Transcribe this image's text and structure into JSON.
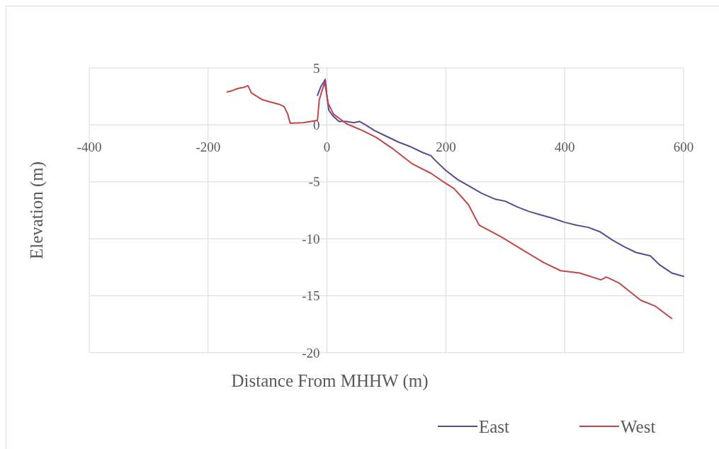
{
  "chart_data": {
    "type": "line",
    "xlabel": "Distance From MHHW (m)",
    "ylabel": "Elevation (m)",
    "xlim": [
      -400,
      600
    ],
    "xticks": [
      -400,
      -200,
      0,
      200,
      400,
      600
    ],
    "ylim": [
      -20,
      5
    ],
    "yticks": [
      -20,
      -15,
      -10,
      -5,
      0,
      5
    ],
    "grid": true,
    "legend": "bottom right",
    "series": [
      {
        "name": "East",
        "color": "#5b4a91",
        "x": [
          -16,
          -10,
          -5,
          -3,
          0,
          3,
          10,
          20,
          33,
          45,
          55,
          65,
          80,
          100,
          120,
          140,
          160,
          175,
          180,
          200,
          220,
          240,
          260,
          282,
          300,
          320,
          340,
          360,
          380,
          400,
          420,
          440,
          460,
          480,
          500,
          520,
          544,
          560,
          580,
          600
        ],
        "values": [
          2.6,
          3.4,
          3.8,
          4.0,
          2.5,
          1.3,
          0.8,
          0.3,
          0.3,
          0.2,
          0.3,
          0.0,
          -0.5,
          -1.0,
          -1.5,
          -1.9,
          -2.4,
          -2.7,
          -3.0,
          -4.0,
          -4.8,
          -5.4,
          -6.0,
          -6.5,
          -6.7,
          -7.2,
          -7.6,
          -7.9,
          -8.2,
          -8.55,
          -8.8,
          -9.0,
          -9.4,
          -10.1,
          -10.7,
          -11.2,
          -11.5,
          -12.3,
          -13.0,
          -13.3
        ]
      },
      {
        "name": "West",
        "color": "#c0464a",
        "x": [
          -168,
          -160,
          -150,
          -140,
          -133,
          -127,
          -108,
          -80,
          -72,
          -66,
          -62,
          -40,
          -16,
          -13,
          -4,
          2,
          11,
          33,
          60,
          83,
          111,
          143,
          175,
          198,
          214,
          238,
          256,
          294,
          333,
          365,
          393,
          425,
          461,
          470,
          492,
          528,
          552,
          580
        ],
        "values": [
          2.9,
          3.0,
          3.2,
          3.3,
          3.45,
          2.8,
          2.2,
          1.8,
          1.6,
          0.95,
          0.15,
          0.2,
          0.4,
          2.2,
          3.75,
          1.9,
          0.95,
          0.1,
          -0.5,
          -1.1,
          -2.1,
          -3.4,
          -4.25,
          -5.07,
          -5.6,
          -7.0,
          -8.8,
          -9.85,
          -11.1,
          -12.1,
          -12.8,
          -13.0,
          -13.6,
          -13.35,
          -13.9,
          -15.4,
          -15.9,
          -17.0
        ]
      }
    ]
  }
}
